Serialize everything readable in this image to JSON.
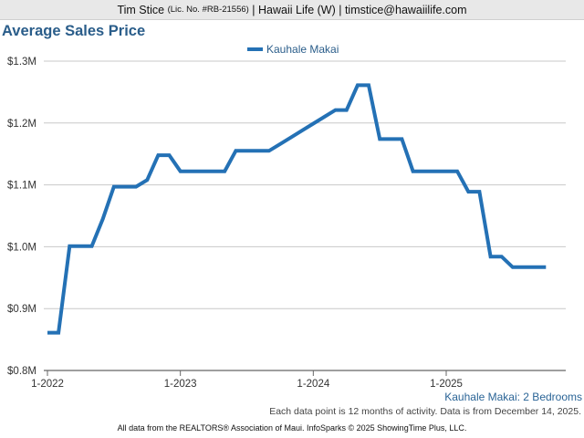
{
  "header": {
    "agent": "Tim Stice",
    "license": "(Lic. No. #RB-21556)",
    "rest": "| Hawaii Life (W) | timstice@hawaiilife.com"
  },
  "chart_data": {
    "type": "line",
    "title": "Average Sales Price",
    "series": [
      {
        "name": "Kauhale Makai",
        "color": "#2471b5",
        "points": [
          [
            "2022-01",
            0.861
          ],
          [
            "2022-02",
            0.861
          ],
          [
            "2022-03",
            1.001
          ],
          [
            "2022-04",
            1.001
          ],
          [
            "2022-05",
            1.001
          ],
          [
            "2022-06",
            1.045
          ],
          [
            "2022-07",
            1.097
          ],
          [
            "2022-08",
            1.097
          ],
          [
            "2022-09",
            1.097
          ],
          [
            "2022-10",
            1.108
          ],
          [
            "2022-11",
            1.148
          ],
          [
            "2022-12",
            1.148
          ],
          [
            "2023-01",
            1.122
          ],
          [
            "2023-02",
            1.122
          ],
          [
            "2023-03",
            1.122
          ],
          [
            "2023-04",
            1.122
          ],
          [
            "2023-05",
            1.122
          ],
          [
            "2023-06",
            1.155
          ],
          [
            "2023-07",
            1.155
          ],
          [
            "2023-08",
            1.155
          ],
          [
            "2023-09",
            1.155
          ],
          [
            "2023-10",
            1.166
          ],
          [
            "2023-11",
            1.177
          ],
          [
            "2023-12",
            1.188
          ],
          [
            "2024-01",
            1.199
          ],
          [
            "2024-02",
            1.21
          ],
          [
            "2024-03",
            1.221
          ],
          [
            "2024-04",
            1.221
          ],
          [
            "2024-05",
            1.261
          ],
          [
            "2024-06",
            1.261
          ],
          [
            "2024-07",
            1.174
          ],
          [
            "2024-08",
            1.174
          ],
          [
            "2024-09",
            1.174
          ],
          [
            "2024-10",
            1.122
          ],
          [
            "2024-11",
            1.122
          ],
          [
            "2024-12",
            1.122
          ],
          [
            "2025-01",
            1.122
          ],
          [
            "2025-02",
            1.122
          ],
          [
            "2025-03",
            1.089
          ],
          [
            "2025-04",
            1.089
          ],
          [
            "2025-05",
            0.984
          ],
          [
            "2025-06",
            0.984
          ],
          [
            "2025-07",
            0.967
          ],
          [
            "2025-08",
            0.967
          ],
          [
            "2025-09",
            0.967
          ],
          [
            "2025-10",
            0.967
          ]
        ]
      }
    ],
    "y_unit": "$M",
    "ylim": [
      0.8,
      1.3
    ],
    "yticks": [
      0.8,
      0.9,
      1.0,
      1.1,
      1.2,
      1.3
    ],
    "ytick_labels": [
      "$0.8M",
      "$0.9M",
      "$1.0M",
      "$1.1M",
      "$1.2M",
      "$1.3M"
    ],
    "xlim": [
      "2022-01",
      "2025-12"
    ],
    "xticks": [
      "2022-01",
      "2023-01",
      "2024-01",
      "2025-01"
    ],
    "xtick_labels": [
      "1-2022",
      "1-2023",
      "1-2024",
      "1-2025"
    ],
    "grid": "horizontal",
    "legend": "top-center",
    "subtitle": "Kauhale Makai: 2 Bedrooms",
    "note": "Each data point is 12 months of activity. Data is from December 14, 2025."
  },
  "footer": "All data from the REALTORS® Association of Maui. InfoSparks © 2025 ShowingTime Plus, LLC."
}
